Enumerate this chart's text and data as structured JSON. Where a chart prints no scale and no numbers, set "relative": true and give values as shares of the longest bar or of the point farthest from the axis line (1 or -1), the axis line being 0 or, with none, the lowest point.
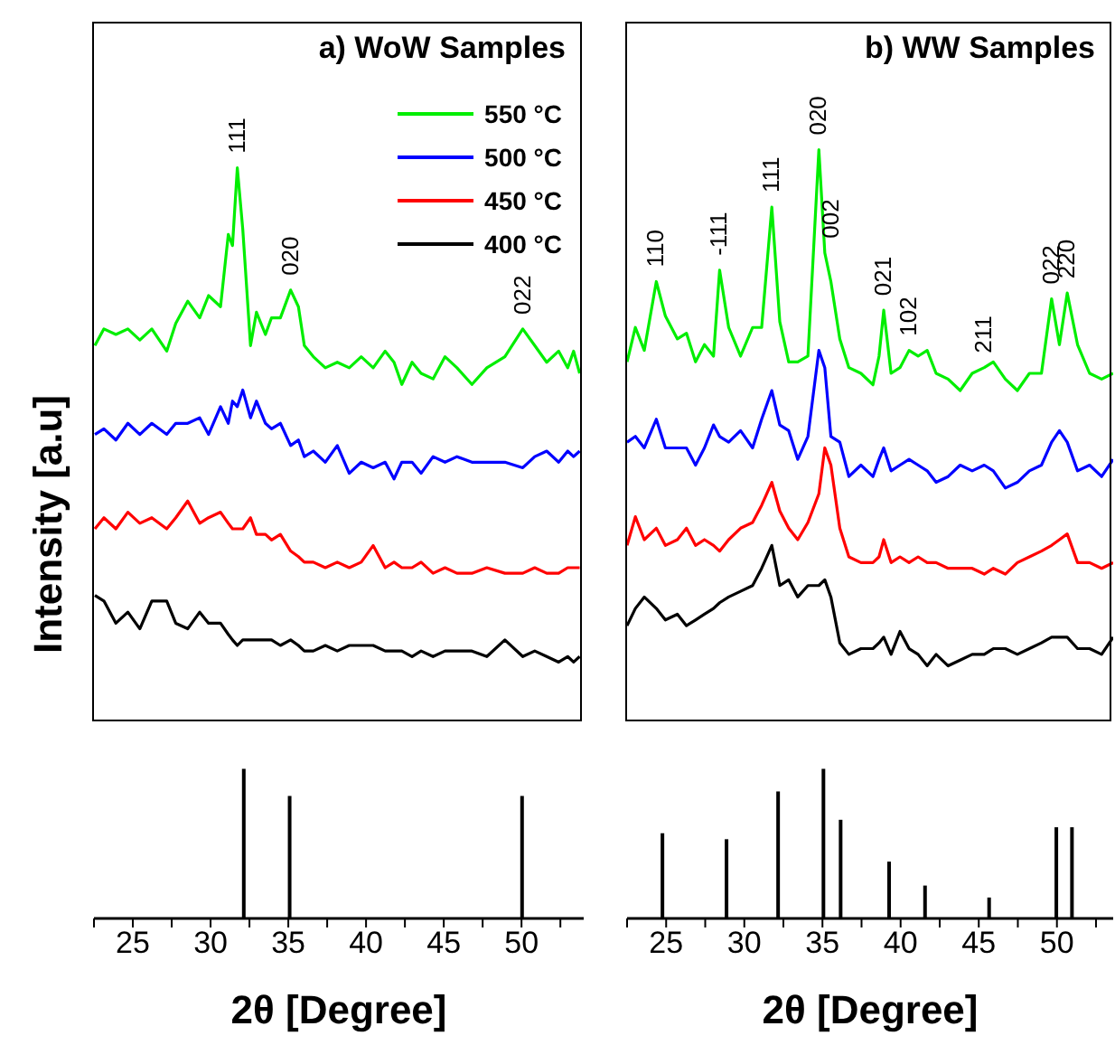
{
  "chart_data": [
    {
      "type": "line",
      "title": "a) WoW Samples",
      "ylabel": "Intensity [a.u]",
      "relative": true,
      "tick_labels": false,
      "legend": "top right",
      "xlim": [
        22.5,
        54
      ],
      "x": [
        22.56,
        23.14,
        23.91,
        24.68,
        25.45,
        26.22,
        27.18,
        27.76,
        28.53,
        29.3,
        29.87,
        30.64,
        31.14,
        31.41,
        31.72,
        32.07,
        32.57,
        32.95,
        33.53,
        33.92,
        34.49,
        35.15,
        35.65,
        36.03,
        36.61,
        37.38,
        38.15,
        38.92,
        39.69,
        40.46,
        41.23,
        41.8,
        42.3,
        42.96,
        43.54,
        44.31,
        45.08,
        45.85,
        46.81,
        47.77,
        48.93,
        50.08,
        50.85,
        51.62,
        52.39,
        52.97,
        53.35,
        53.74
      ],
      "series": [
        {
          "name": "550 °C",
          "color": "#00ee00",
          "values": [
            0.68,
            0.71,
            0.7,
            0.71,
            0.69,
            0.71,
            0.67,
            0.72,
            0.76,
            0.73,
            0.77,
            0.75,
            0.88,
            0.86,
            1.0,
            0.89,
            0.68,
            0.74,
            0.7,
            0.73,
            0.73,
            0.78,
            0.75,
            0.68,
            0.66,
            0.64,
            0.65,
            0.64,
            0.66,
            0.64,
            0.67,
            0.65,
            0.61,
            0.65,
            0.63,
            0.62,
            0.66,
            0.64,
            0.61,
            0.64,
            0.66,
            0.71,
            0.68,
            0.65,
            0.67,
            0.64,
            0.67,
            0.63
          ]
        },
        {
          "name": "500 °C",
          "color": "#0000ff",
          "values": [
            0.52,
            0.53,
            0.51,
            0.54,
            0.52,
            0.54,
            0.52,
            0.54,
            0.54,
            0.55,
            0.52,
            0.57,
            0.54,
            0.58,
            0.57,
            0.6,
            0.55,
            0.58,
            0.54,
            0.53,
            0.54,
            0.5,
            0.51,
            0.48,
            0.49,
            0.47,
            0.5,
            0.45,
            0.47,
            0.46,
            0.47,
            0.44,
            0.47,
            0.47,
            0.45,
            0.48,
            0.47,
            0.48,
            0.47,
            0.47,
            0.47,
            0.46,
            0.48,
            0.49,
            0.47,
            0.49,
            0.48,
            0.49
          ]
        },
        {
          "name": "450 °C",
          "color": "#ff0000",
          "values": [
            0.35,
            0.37,
            0.35,
            0.38,
            0.36,
            0.37,
            0.35,
            0.37,
            0.4,
            0.36,
            0.37,
            0.38,
            0.36,
            0.35,
            0.35,
            0.35,
            0.37,
            0.34,
            0.34,
            0.33,
            0.34,
            0.31,
            0.3,
            0.29,
            0.29,
            0.28,
            0.29,
            0.28,
            0.29,
            0.32,
            0.28,
            0.29,
            0.28,
            0.28,
            0.29,
            0.27,
            0.28,
            0.27,
            0.27,
            0.28,
            0.27,
            0.27,
            0.28,
            0.27,
            0.27,
            0.28,
            0.28,
            0.28
          ]
        },
        {
          "name": "400 °C",
          "color": "#000000",
          "values": [
            0.23,
            0.22,
            0.18,
            0.2,
            0.17,
            0.22,
            0.22,
            0.18,
            0.17,
            0.2,
            0.18,
            0.18,
            0.16,
            0.15,
            0.14,
            0.15,
            0.15,
            0.15,
            0.15,
            0.15,
            0.14,
            0.15,
            0.14,
            0.13,
            0.13,
            0.14,
            0.13,
            0.14,
            0.14,
            0.14,
            0.13,
            0.13,
            0.13,
            0.12,
            0.13,
            0.12,
            0.13,
            0.13,
            0.13,
            0.12,
            0.15,
            0.12,
            0.13,
            0.12,
            0.11,
            0.12,
            0.11,
            0.12
          ]
        }
      ],
      "annotations": [
        {
          "text": "111",
          "x": 31.72,
          "y": 1.0
        },
        {
          "text": "020",
          "x": 35.15,
          "y": 0.78
        },
        {
          "text": "022",
          "x": 50.08,
          "y": 0.71
        }
      ]
    },
    {
      "type": "line",
      "title": "b) WW Samples",
      "relative": true,
      "tick_labels": false,
      "xlim": [
        22.5,
        53.6
      ],
      "x": [
        22.5,
        23.03,
        23.6,
        24.37,
        24.95,
        25.72,
        26.3,
        26.88,
        27.45,
        28.03,
        28.42,
        29.0,
        29.76,
        30.53,
        31.11,
        31.76,
        32.27,
        32.84,
        33.42,
        34.07,
        34.77,
        35.15,
        35.54,
        36.11,
        36.69,
        37.46,
        38.23,
        38.62,
        38.92,
        39.39,
        39.96,
        40.54,
        41.12,
        41.7,
        42.27,
        43.04,
        43.81,
        44.58,
        45.35,
        45.93,
        46.7,
        47.47,
        48.24,
        49.01,
        49.66,
        50.16,
        50.66,
        51.32,
        52.09,
        52.86,
        53.6
      ],
      "series": [
        {
          "color": "#00ee00",
          "values": [
            0.63,
            0.69,
            0.65,
            0.77,
            0.71,
            0.67,
            0.68,
            0.63,
            0.66,
            0.64,
            0.79,
            0.69,
            0.64,
            0.69,
            0.69,
            0.9,
            0.7,
            0.63,
            0.63,
            0.64,
            1.0,
            0.82,
            0.77,
            0.67,
            0.62,
            0.61,
            0.59,
            0.64,
            0.72,
            0.61,
            0.62,
            0.65,
            0.64,
            0.65,
            0.61,
            0.6,
            0.58,
            0.61,
            0.62,
            0.63,
            0.6,
            0.58,
            0.61,
            0.61,
            0.74,
            0.66,
            0.75,
            0.66,
            0.61,
            0.6,
            0.61
          ]
        },
        {
          "color": "#0000ff",
          "values": [
            0.49,
            0.5,
            0.48,
            0.53,
            0.48,
            0.48,
            0.48,
            0.45,
            0.48,
            0.52,
            0.5,
            0.49,
            0.51,
            0.48,
            0.53,
            0.58,
            0.52,
            0.51,
            0.46,
            0.5,
            0.65,
            0.62,
            0.5,
            0.49,
            0.43,
            0.45,
            0.43,
            0.46,
            0.48,
            0.44,
            0.45,
            0.46,
            0.45,
            0.44,
            0.42,
            0.43,
            0.45,
            0.44,
            0.45,
            0.44,
            0.41,
            0.42,
            0.44,
            0.45,
            0.49,
            0.51,
            0.49,
            0.44,
            0.45,
            0.43,
            0.46
          ]
        },
        {
          "color": "#ff0000",
          "values": [
            0.31,
            0.36,
            0.32,
            0.34,
            0.31,
            0.32,
            0.34,
            0.31,
            0.32,
            0.31,
            0.3,
            0.32,
            0.34,
            0.35,
            0.38,
            0.42,
            0.37,
            0.34,
            0.32,
            0.35,
            0.4,
            0.48,
            0.45,
            0.34,
            0.29,
            0.28,
            0.28,
            0.29,
            0.32,
            0.28,
            0.29,
            0.28,
            0.29,
            0.28,
            0.28,
            0.27,
            0.27,
            0.27,
            0.26,
            0.27,
            0.26,
            0.28,
            0.29,
            0.3,
            0.31,
            0.32,
            0.33,
            0.28,
            0.28,
            0.27,
            0.28
          ]
        },
        {
          "color": "#000000",
          "values": [
            0.17,
            0.2,
            0.22,
            0.2,
            0.18,
            0.19,
            0.17,
            0.18,
            0.19,
            0.2,
            0.21,
            0.22,
            0.23,
            0.24,
            0.27,
            0.31,
            0.24,
            0.25,
            0.22,
            0.24,
            0.24,
            0.25,
            0.22,
            0.14,
            0.12,
            0.13,
            0.13,
            0.14,
            0.15,
            0.12,
            0.16,
            0.13,
            0.12,
            0.1,
            0.12,
            0.1,
            0.11,
            0.12,
            0.12,
            0.13,
            0.13,
            0.12,
            0.13,
            0.14,
            0.15,
            0.15,
            0.15,
            0.13,
            0.13,
            0.12,
            0.15
          ]
        }
      ],
      "annotations": [
        {
          "text": "110",
          "x": 24.37,
          "y": 0.77
        },
        {
          "text": "-111",
          "x": 28.42,
          "y": 0.79
        },
        {
          "text": "111",
          "x": 31.76,
          "y": 0.9
        },
        {
          "text": "020",
          "x": 34.77,
          "y": 1.0
        },
        {
          "text": "002",
          "x": 35.54,
          "y": 0.82
        },
        {
          "text": "021",
          "x": 38.92,
          "y": 0.72
        },
        {
          "text": "102",
          "x": 40.54,
          "y": 0.65
        },
        {
          "text": "211",
          "x": 45.35,
          "y": 0.62
        },
        {
          "text": "022",
          "x": 49.66,
          "y": 0.74
        },
        {
          "text": "220",
          "x": 50.66,
          "y": 0.75
        }
      ]
    },
    {
      "type": "bar",
      "xlabel": "2θ [Degree]",
      "relative": true,
      "tick_labels": "x",
      "color": "#000000",
      "xlim": [
        22.5,
        54
      ],
      "xticks": [
        {
          "value": 22.5,
          "label": null
        },
        25,
        {
          "value": 27.5,
          "label": null
        },
        30,
        {
          "value": 32.5,
          "label": null
        },
        35,
        {
          "value": 37.5,
          "label": null
        },
        40,
        {
          "value": 42.5,
          "label": null
        },
        45,
        {
          "value": 47.5,
          "label": null
        },
        50,
        {
          "value": 52.5,
          "label": null
        }
      ],
      "x": [
        32.1,
        35.05,
        50.0
      ],
      "values": [
        1.0,
        0.82,
        0.82
      ]
    },
    {
      "type": "bar",
      "xlabel": "2θ [Degree]",
      "relative": true,
      "tick_labels": "x",
      "color": "#000000",
      "xlim": [
        22.5,
        53.6
      ],
      "xticks": [
        {
          "value": 22.5,
          "label": null
        },
        25,
        {
          "value": 27.5,
          "label": null
        },
        30,
        {
          "value": 32.5,
          "label": null
        },
        35,
        {
          "value": 37.5,
          "label": null
        },
        40,
        {
          "value": 42.5,
          "label": null
        },
        45,
        {
          "value": 47.5,
          "label": null
        },
        50,
        {
          "value": 52.5,
          "label": null
        }
      ],
      "x": [
        24.8,
        28.9,
        32.2,
        35.1,
        36.2,
        39.3,
        41.6,
        45.7,
        50.0,
        51.0
      ],
      "values": [
        0.57,
        0.53,
        0.85,
        1.0,
        0.66,
        0.38,
        0.22,
        0.14,
        0.61,
        0.61
      ]
    }
  ]
}
